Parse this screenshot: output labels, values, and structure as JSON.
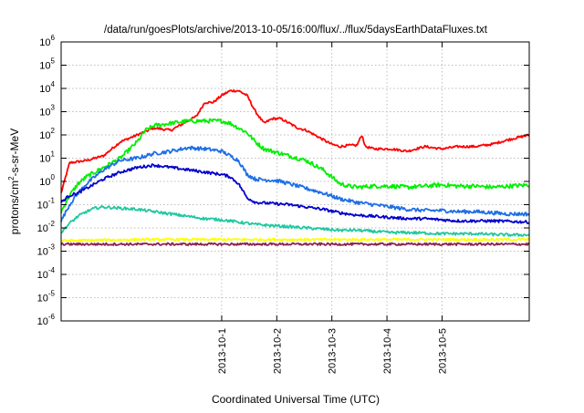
{
  "chart_data": {
    "type": "line",
    "title": "/data/run/goesPlots/archive/2013-10-05/16:00/flux/../flux/5daysEarthDataFluxes.txt",
    "xlabel": "Coordinated Universal Time (UTC)",
    "ylabel_parts": {
      "pre": "protons/cm",
      "sup": "2",
      "post": "-s-sr-MeV"
    },
    "y_scale": "log",
    "ylim": [
      1e-06,
      1000000.0
    ],
    "xlim": [
      -0.95,
      1.82
    ],
    "grid": true,
    "legend": "none",
    "y_ticks": [
      {
        "exp": -6,
        "label_base": "10",
        "label_exp": "-6"
      },
      {
        "exp": -5,
        "label_base": "10",
        "label_exp": "-5"
      },
      {
        "exp": -4,
        "label_base": "10",
        "label_exp": "-4"
      },
      {
        "exp": -3,
        "label_base": "10",
        "label_exp": "-3"
      },
      {
        "exp": -2,
        "label_base": "10",
        "label_exp": "-2"
      },
      {
        "exp": -1,
        "label_base": "10",
        "label_exp": "-1"
      },
      {
        "exp": 0,
        "label_base": "10",
        "label_exp": "0"
      },
      {
        "exp": 1,
        "label_base": "10",
        "label_exp": "1"
      },
      {
        "exp": 2,
        "label_base": "10",
        "label_exp": "2"
      },
      {
        "exp": 3,
        "label_base": "10",
        "label_exp": "3"
      },
      {
        "exp": 4,
        "label_base": "10",
        "label_exp": "4"
      },
      {
        "exp": 5,
        "label_base": "10",
        "label_exp": "5"
      },
      {
        "exp": 6,
        "label_base": "10",
        "label_exp": "6"
      }
    ],
    "x_ticks": [
      {
        "x": 0,
        "label": "2013-10-1"
      },
      {
        "x": 0.326,
        "label": "2013-10-2"
      },
      {
        "x": 0.652,
        "label": "2013-10-3"
      },
      {
        "x": 0.978,
        "label": "2013-10-4"
      },
      {
        "x": 1.304,
        "label": "2013-10-5"
      }
    ],
    "series": [
      {
        "color": "#ff0000",
        "noise": 0.05,
        "points": [
          [
            -0.95,
            -0.5
          ],
          [
            -0.9,
            0.8
          ],
          [
            -0.85,
            0.85
          ],
          [
            -0.8,
            0.9
          ],
          [
            -0.7,
            1.1
          ],
          [
            -0.6,
            1.7
          ],
          [
            -0.5,
            2.0
          ],
          [
            -0.4,
            2.3
          ],
          [
            -0.3,
            2.2
          ],
          [
            -0.2,
            2.6
          ],
          [
            -0.15,
            2.8
          ],
          [
            -0.1,
            3.4
          ],
          [
            -0.05,
            3.4
          ],
          [
            0,
            3.7
          ],
          [
            0.05,
            3.9
          ],
          [
            0.1,
            3.9
          ],
          [
            0.15,
            3.7
          ],
          [
            0.2,
            3.0
          ],
          [
            0.25,
            2.5
          ],
          [
            0.3,
            2.7
          ],
          [
            0.35,
            2.7
          ],
          [
            0.4,
            2.5
          ],
          [
            0.45,
            2.3
          ],
          [
            0.5,
            2.2
          ],
          [
            0.55,
            2.0
          ],
          [
            0.6,
            1.8
          ],
          [
            0.65,
            1.6
          ],
          [
            0.7,
            1.5
          ],
          [
            0.75,
            1.55
          ],
          [
            0.8,
            1.55
          ],
          [
            0.83,
            2.0
          ],
          [
            0.85,
            1.5
          ],
          [
            0.9,
            1.4
          ],
          [
            1.0,
            1.4
          ],
          [
            1.1,
            1.3
          ],
          [
            1.2,
            1.5
          ],
          [
            1.3,
            1.4
          ],
          [
            1.4,
            1.5
          ],
          [
            1.5,
            1.5
          ],
          [
            1.6,
            1.6
          ],
          [
            1.7,
            1.8
          ],
          [
            1.82,
            2.0
          ]
        ]
      },
      {
        "color": "#00ee00",
        "noise": 0.09,
        "points": [
          [
            -0.95,
            -1.3
          ],
          [
            -0.9,
            -0.6
          ],
          [
            -0.85,
            -0.1
          ],
          [
            -0.8,
            0.2
          ],
          [
            -0.7,
            0.6
          ],
          [
            -0.6,
            1.0
          ],
          [
            -0.5,
            1.7
          ],
          [
            -0.45,
            2.2
          ],
          [
            -0.4,
            2.4
          ],
          [
            -0.3,
            2.5
          ],
          [
            -0.2,
            2.6
          ],
          [
            -0.1,
            2.6
          ],
          [
            0,
            2.6
          ],
          [
            0.05,
            2.5
          ],
          [
            0.1,
            2.3
          ],
          [
            0.15,
            2.1
          ],
          [
            0.2,
            1.7
          ],
          [
            0.25,
            1.4
          ],
          [
            0.3,
            1.3
          ],
          [
            0.35,
            1.2
          ],
          [
            0.4,
            1.1
          ],
          [
            0.45,
            1.0
          ],
          [
            0.5,
            0.9
          ],
          [
            0.55,
            0.7
          ],
          [
            0.6,
            0.5
          ],
          [
            0.65,
            0.2
          ],
          [
            0.7,
            -0.1
          ],
          [
            0.75,
            -0.2
          ],
          [
            0.8,
            -0.25
          ],
          [
            0.9,
            -0.2
          ],
          [
            1.0,
            -0.2
          ],
          [
            1.1,
            -0.25
          ],
          [
            1.2,
            -0.2
          ],
          [
            1.3,
            -0.15
          ],
          [
            1.4,
            -0.2
          ],
          [
            1.5,
            -0.2
          ],
          [
            1.6,
            -0.25
          ],
          [
            1.7,
            -0.2
          ],
          [
            1.82,
            -0.15
          ]
        ]
      },
      {
        "color": "#1e6fe6",
        "noise": 0.08,
        "points": [
          [
            -0.95,
            -1.7
          ],
          [
            -0.9,
            -1.0
          ],
          [
            -0.85,
            -0.5
          ],
          [
            -0.8,
            -0.1
          ],
          [
            -0.7,
            0.5
          ],
          [
            -0.6,
            0.9
          ],
          [
            -0.5,
            1.0
          ],
          [
            -0.4,
            1.2
          ],
          [
            -0.3,
            1.3
          ],
          [
            -0.2,
            1.45
          ],
          [
            -0.1,
            1.4
          ],
          [
            0,
            1.3
          ],
          [
            0.05,
            1.1
          ],
          [
            0.1,
            0.9
          ],
          [
            0.15,
            0.3
          ],
          [
            0.2,
            0.1
          ],
          [
            0.3,
            0.05
          ],
          [
            0.35,
            0.0
          ],
          [
            0.4,
            -0.1
          ],
          [
            0.5,
            -0.3
          ],
          [
            0.6,
            -0.5
          ],
          [
            0.7,
            -0.75
          ],
          [
            0.8,
            -0.9
          ],
          [
            0.9,
            -1.0
          ],
          [
            1.0,
            -1.1
          ],
          [
            1.1,
            -1.2
          ],
          [
            1.2,
            -1.25
          ],
          [
            1.3,
            -1.25
          ],
          [
            1.4,
            -1.3
          ],
          [
            1.5,
            -1.3
          ],
          [
            1.6,
            -1.35
          ],
          [
            1.7,
            -1.4
          ],
          [
            1.82,
            -1.4
          ]
        ]
      },
      {
        "color": "#0000cc",
        "noise": 0.06,
        "points": [
          [
            -0.95,
            -0.9
          ],
          [
            -0.9,
            -0.6
          ],
          [
            -0.85,
            -0.5
          ],
          [
            -0.8,
            -0.3
          ],
          [
            -0.7,
            0.1
          ],
          [
            -0.6,
            0.4
          ],
          [
            -0.5,
            0.6
          ],
          [
            -0.4,
            0.7
          ],
          [
            -0.3,
            0.6
          ],
          [
            -0.2,
            0.5
          ],
          [
            -0.1,
            0.4
          ],
          [
            0,
            0.3
          ],
          [
            0.05,
            0.2
          ],
          [
            0.1,
            -0.1
          ],
          [
            0.15,
            -0.7
          ],
          [
            0.2,
            -0.9
          ],
          [
            0.3,
            -0.95
          ],
          [
            0.4,
            -1.0
          ],
          [
            0.5,
            -1.1
          ],
          [
            0.6,
            -1.2
          ],
          [
            0.7,
            -1.35
          ],
          [
            0.8,
            -1.45
          ],
          [
            0.9,
            -1.5
          ],
          [
            1.0,
            -1.55
          ],
          [
            1.1,
            -1.6
          ],
          [
            1.2,
            -1.6
          ],
          [
            1.3,
            -1.65
          ],
          [
            1.4,
            -1.7
          ],
          [
            1.5,
            -1.7
          ],
          [
            1.6,
            -1.7
          ],
          [
            1.7,
            -1.72
          ],
          [
            1.82,
            -1.75
          ]
        ]
      },
      {
        "color": "#20c8a0",
        "noise": 0.06,
        "points": [
          [
            -0.95,
            -2.2
          ],
          [
            -0.9,
            -1.8
          ],
          [
            -0.85,
            -1.5
          ],
          [
            -0.8,
            -1.3
          ],
          [
            -0.75,
            -1.15
          ],
          [
            -0.7,
            -1.1
          ],
          [
            -0.6,
            -1.15
          ],
          [
            -0.5,
            -1.2
          ],
          [
            -0.4,
            -1.3
          ],
          [
            -0.3,
            -1.4
          ],
          [
            -0.2,
            -1.5
          ],
          [
            -0.1,
            -1.6
          ],
          [
            0,
            -1.65
          ],
          [
            0.1,
            -1.75
          ],
          [
            0.2,
            -1.85
          ],
          [
            0.3,
            -1.9
          ],
          [
            0.4,
            -1.95
          ],
          [
            0.5,
            -2.0
          ],
          [
            0.6,
            -2.05
          ],
          [
            0.7,
            -2.1
          ],
          [
            0.8,
            -2.1
          ],
          [
            0.9,
            -2.15
          ],
          [
            1.0,
            -2.2
          ],
          [
            1.1,
            -2.2
          ],
          [
            1.2,
            -2.22
          ],
          [
            1.3,
            -2.25
          ],
          [
            1.4,
            -2.25
          ],
          [
            1.5,
            -2.25
          ],
          [
            1.6,
            -2.28
          ],
          [
            1.7,
            -2.3
          ],
          [
            1.82,
            -2.3
          ]
        ]
      },
      {
        "color": "#ffff00",
        "noise": 0.05,
        "points": [
          [
            -0.95,
            -2.55
          ],
          [
            -0.5,
            -2.5
          ],
          [
            0,
            -2.5
          ],
          [
            0.5,
            -2.5
          ],
          [
            1.0,
            -2.5
          ],
          [
            1.5,
            -2.5
          ],
          [
            1.82,
            -2.5
          ]
        ]
      },
      {
        "color": "#8b2252",
        "noise": 0.05,
        "points": [
          [
            -0.95,
            -2.7
          ],
          [
            -0.5,
            -2.7
          ],
          [
            0,
            -2.7
          ],
          [
            0.5,
            -2.7
          ],
          [
            1.0,
            -2.7
          ],
          [
            1.5,
            -2.7
          ],
          [
            1.82,
            -2.7
          ]
        ]
      }
    ]
  }
}
